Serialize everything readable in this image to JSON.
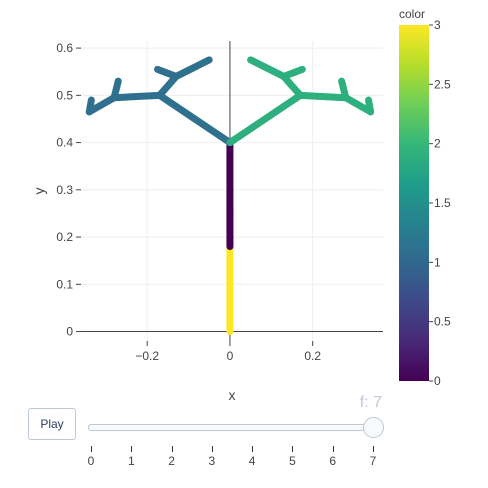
{
  "chart_data": {
    "type": "scatter",
    "xlabel": "x",
    "ylabel": "y",
    "xlim": [
      -0.36,
      0.37
    ],
    "ylim": [
      -0.02,
      0.615
    ],
    "x_ticks": [
      -0.2,
      0,
      0.2
    ],
    "x_tick_labels": [
      "−0.2",
      "0",
      "0.2"
    ],
    "y_ticks": [
      0,
      0.1,
      0.2,
      0.3,
      0.4,
      0.5,
      0.6
    ],
    "y_tick_labels": [
      "0",
      "0.1",
      "0.2",
      "0.3",
      "0.4",
      "0.5",
      "0.6"
    ],
    "grid": true,
    "colorbar": {
      "title": "color",
      "range": [
        0,
        3
      ],
      "ticks": [
        0,
        0.5,
        1,
        1.5,
        2,
        2.5,
        3
      ],
      "tick_labels": [
        "0",
        "0.5",
        "1",
        "1.5",
        "2",
        "2.5",
        "3"
      ],
      "colorscale": [
        "#440154",
        "#482878",
        "#3e4989",
        "#31688e",
        "#26828e",
        "#1f9e89",
        "#35b779",
        "#6ece58",
        "#b5de2b",
        "#fde725"
      ]
    },
    "segments": [
      {
        "color_value": 3,
        "points": [
          [
            0,
            0
          ],
          [
            0,
            0.26
          ]
        ]
      },
      {
        "color_value": 0,
        "points": [
          [
            0,
            0.18
          ],
          [
            0,
            0.26
          ]
        ]
      },
      {
        "color_value": 0,
        "points": [
          [
            0,
            0.26
          ],
          [
            0,
            0.4
          ]
        ]
      },
      {
        "color_value": 1.1,
        "points": [
          [
            0,
            0.4
          ],
          [
            -0.17,
            0.5
          ],
          [
            -0.28,
            0.495
          ],
          [
            -0.34,
            0.465
          ]
        ]
      },
      {
        "color_value": 1.1,
        "points": [
          [
            -0.17,
            0.5
          ],
          [
            -0.13,
            0.54
          ],
          [
            -0.05,
            0.575
          ]
        ]
      },
      {
        "color_value": 1.1,
        "points": [
          [
            -0.28,
            0.495
          ],
          [
            -0.27,
            0.53
          ]
        ]
      },
      {
        "color_value": 1.1,
        "points": [
          [
            -0.13,
            0.54
          ],
          [
            -0.175,
            0.555
          ]
        ]
      },
      {
        "color_value": 1.1,
        "points": [
          [
            -0.34,
            0.465
          ],
          [
            -0.335,
            0.49
          ]
        ]
      },
      {
        "color_value": 1.9,
        "points": [
          [
            0,
            0.4
          ],
          [
            0.17,
            0.5
          ],
          [
            0.28,
            0.495
          ],
          [
            0.34,
            0.465
          ]
        ]
      },
      {
        "color_value": 1.9,
        "points": [
          [
            0.17,
            0.5
          ],
          [
            0.13,
            0.54
          ],
          [
            0.05,
            0.575
          ]
        ]
      },
      {
        "color_value": 1.9,
        "points": [
          [
            0.28,
            0.495
          ],
          [
            0.27,
            0.53
          ]
        ]
      },
      {
        "color_value": 1.9,
        "points": [
          [
            0.13,
            0.54
          ],
          [
            0.175,
            0.555
          ]
        ]
      },
      {
        "color_value": 1.9,
        "points": [
          [
            0.34,
            0.465
          ],
          [
            0.335,
            0.49
          ]
        ]
      }
    ]
  },
  "animation": {
    "play_label": "Play",
    "current_frame_label": "f: 7",
    "current_frame": 7,
    "frames": [
      "0",
      "1",
      "2",
      "3",
      "4",
      "5",
      "6",
      "7"
    ]
  }
}
